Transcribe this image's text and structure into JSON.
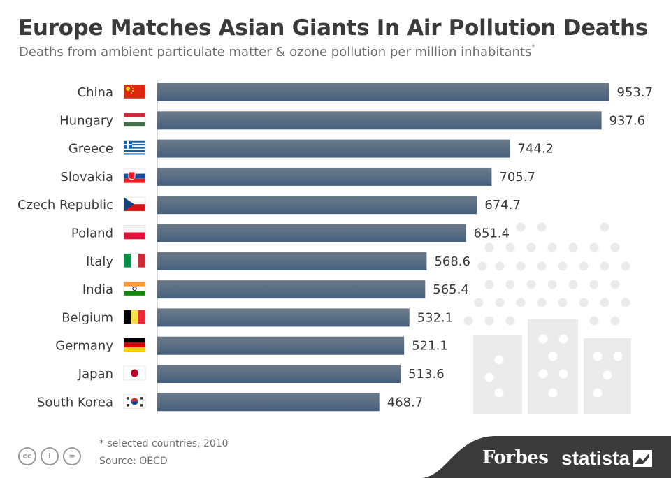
{
  "header": {
    "title": "Europe Matches Asian Giants In Air Pollution Deaths",
    "subtitle": "Deaths from ambient particulate matter & ozone pollution per million inhabitants",
    "subtitle_mark": "*"
  },
  "chart_data": {
    "type": "bar",
    "orientation": "horizontal",
    "categories": [
      "China",
      "Hungary",
      "Greece",
      "Slovakia",
      "Czech Republic",
      "Poland",
      "Italy",
      "India",
      "Belgium",
      "Germany",
      "Japan",
      "South Korea"
    ],
    "values": [
      953.7,
      937.6,
      744.2,
      705.7,
      674.7,
      651.4,
      568.6,
      565.4,
      532.1,
      521.1,
      513.6,
      468.7
    ],
    "value_labels": [
      "953.7",
      "937.6",
      "744.2",
      "705.7",
      "674.7",
      "651.4",
      "568.6",
      "565.4",
      "532.1",
      "521.1",
      "513.6",
      "468.7"
    ],
    "title": "Europe Matches Asian Giants In Air Pollution Deaths",
    "xlim": [
      0,
      953.7
    ],
    "grid": false,
    "colors": {
      "bar_top": "#6c7a88",
      "bar_bottom": "#47607f"
    }
  },
  "flags": [
    "china-flag-icon",
    "hungary-flag-icon",
    "greece-flag-icon",
    "slovakia-flag-icon",
    "czech-flag-icon",
    "poland-flag-icon",
    "italy-flag-icon",
    "india-flag-icon",
    "belgium-flag-icon",
    "germany-flag-icon",
    "japan-flag-icon",
    "south-korea-flag-icon"
  ],
  "footer": {
    "note": "* selected countries, 2010",
    "source": "Source: OECD",
    "license_icons": [
      "cc-icon",
      "by-icon",
      "nd-icon"
    ],
    "license_glyphs": [
      "cc",
      "i",
      "="
    ]
  },
  "brands": {
    "forbes": "Forbes",
    "statista": "statista"
  }
}
